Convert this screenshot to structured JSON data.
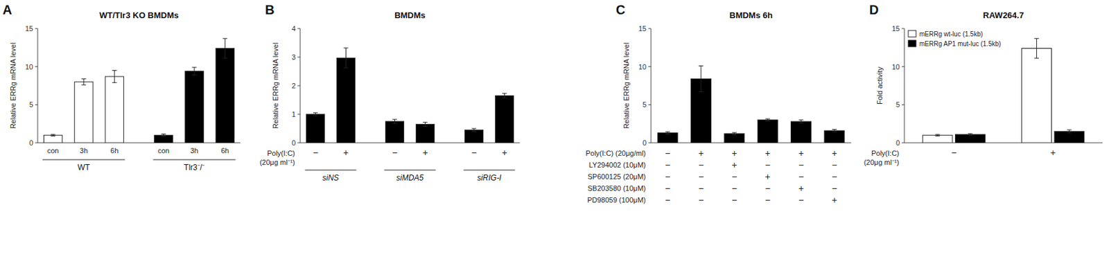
{
  "chart_data": [
    {
      "type": "bar",
      "panel_label": "A",
      "title": "WT/Tlr3 KO BMDMs",
      "y_label": "Relative ERRg mRNA level",
      "categories": [
        "con",
        "3h",
        "6h",
        "con",
        "3h",
        "6h"
      ],
      "values": [
        1.0,
        8.0,
        8.7,
        1.0,
        9.4,
        12.4
      ],
      "errors": [
        0.1,
        0.4,
        0.8,
        0.15,
        0.5,
        1.3
      ],
      "colors": [
        "white",
        "white",
        "white",
        "black",
        "black",
        "black"
      ],
      "group_labels": [
        "WT",
        "Tlr3⁻/⁻"
      ],
      "ylim": [
        0,
        15
      ],
      "yticks": [
        0,
        5,
        10,
        15
      ],
      "grid": false
    },
    {
      "type": "bar",
      "panel_label": "B",
      "title": "BMDMs",
      "y_label": "Relative ERRg mRNA level",
      "categories": [
        "−",
        "+",
        "−",
        "+",
        "−",
        "+"
      ],
      "values": [
        1.0,
        2.97,
        0.75,
        0.65,
        0.45,
        1.65
      ],
      "errors": [
        0.05,
        0.35,
        0.07,
        0.07,
        0.05,
        0.08
      ],
      "color": "black",
      "group_labels": [
        "siNS",
        "siMDA5",
        "siRIG-I"
      ],
      "annotations": [
        "Poly(I:C)",
        "(20μg ml⁻¹)"
      ],
      "ylim": [
        0,
        4
      ],
      "yticks": [
        0,
        1,
        2,
        3,
        4
      ],
      "grid": false
    },
    {
      "type": "bar",
      "panel_label": "C",
      "title": "BMDMs 6h",
      "y_label": "Relative ERRg mRNA level",
      "categories": [
        null,
        null,
        null,
        null,
        null,
        null
      ],
      "values": [
        1.3,
        8.4,
        1.2,
        3.0,
        2.8,
        1.6
      ],
      "errors": [
        0.15,
        1.7,
        0.15,
        0.15,
        0.2,
        0.15
      ],
      "color": "black",
      "sign_rows": [
        {
          "label": "Poly(I:C) (20μg/ml)",
          "signs": [
            "−",
            "+",
            "+",
            "+",
            "+",
            "+"
          ]
        },
        {
          "label": "LY294002 (10μM)",
          "signs": [
            "−",
            "−",
            "+",
            "−",
            "−",
            "−"
          ]
        },
        {
          "label": "SP600125 (20μM)",
          "signs": [
            "−",
            "−",
            "−",
            "+",
            "−",
            "−"
          ]
        },
        {
          "label": "SB203580 (10μM)",
          "signs": [
            "−",
            "−",
            "−",
            "−",
            "+",
            "−"
          ]
        },
        {
          "label": "PD98059 (100μM)",
          "signs": [
            "−",
            "−",
            "−",
            "−",
            "−",
            "+"
          ]
        }
      ],
      "ylim": [
        0,
        15
      ],
      "yticks": [
        0,
        5,
        10,
        15
      ],
      "grid": false
    },
    {
      "type": "bar",
      "panel_label": "D",
      "title": "RAW264.7",
      "y_label": "Fold activity",
      "categories": [
        "−",
        "+"
      ],
      "series": [
        {
          "name": "mERRg wt-luc (1.5kb)",
          "color": "white",
          "values": [
            1.0,
            12.4
          ],
          "errors": [
            0.1,
            1.3
          ]
        },
        {
          "name": "mERRg AP1 mut-luc (1.5kb)",
          "color": "black",
          "values": [
            1.1,
            1.5
          ],
          "errors": [
            0.1,
            0.2
          ]
        }
      ],
      "legend": "upper left",
      "annotations": [
        "Poly(I:C)",
        "(20μg ml⁻¹)"
      ],
      "ylim": [
        0,
        15
      ],
      "yticks": [
        0,
        5,
        10,
        15
      ],
      "grid": false
    }
  ]
}
